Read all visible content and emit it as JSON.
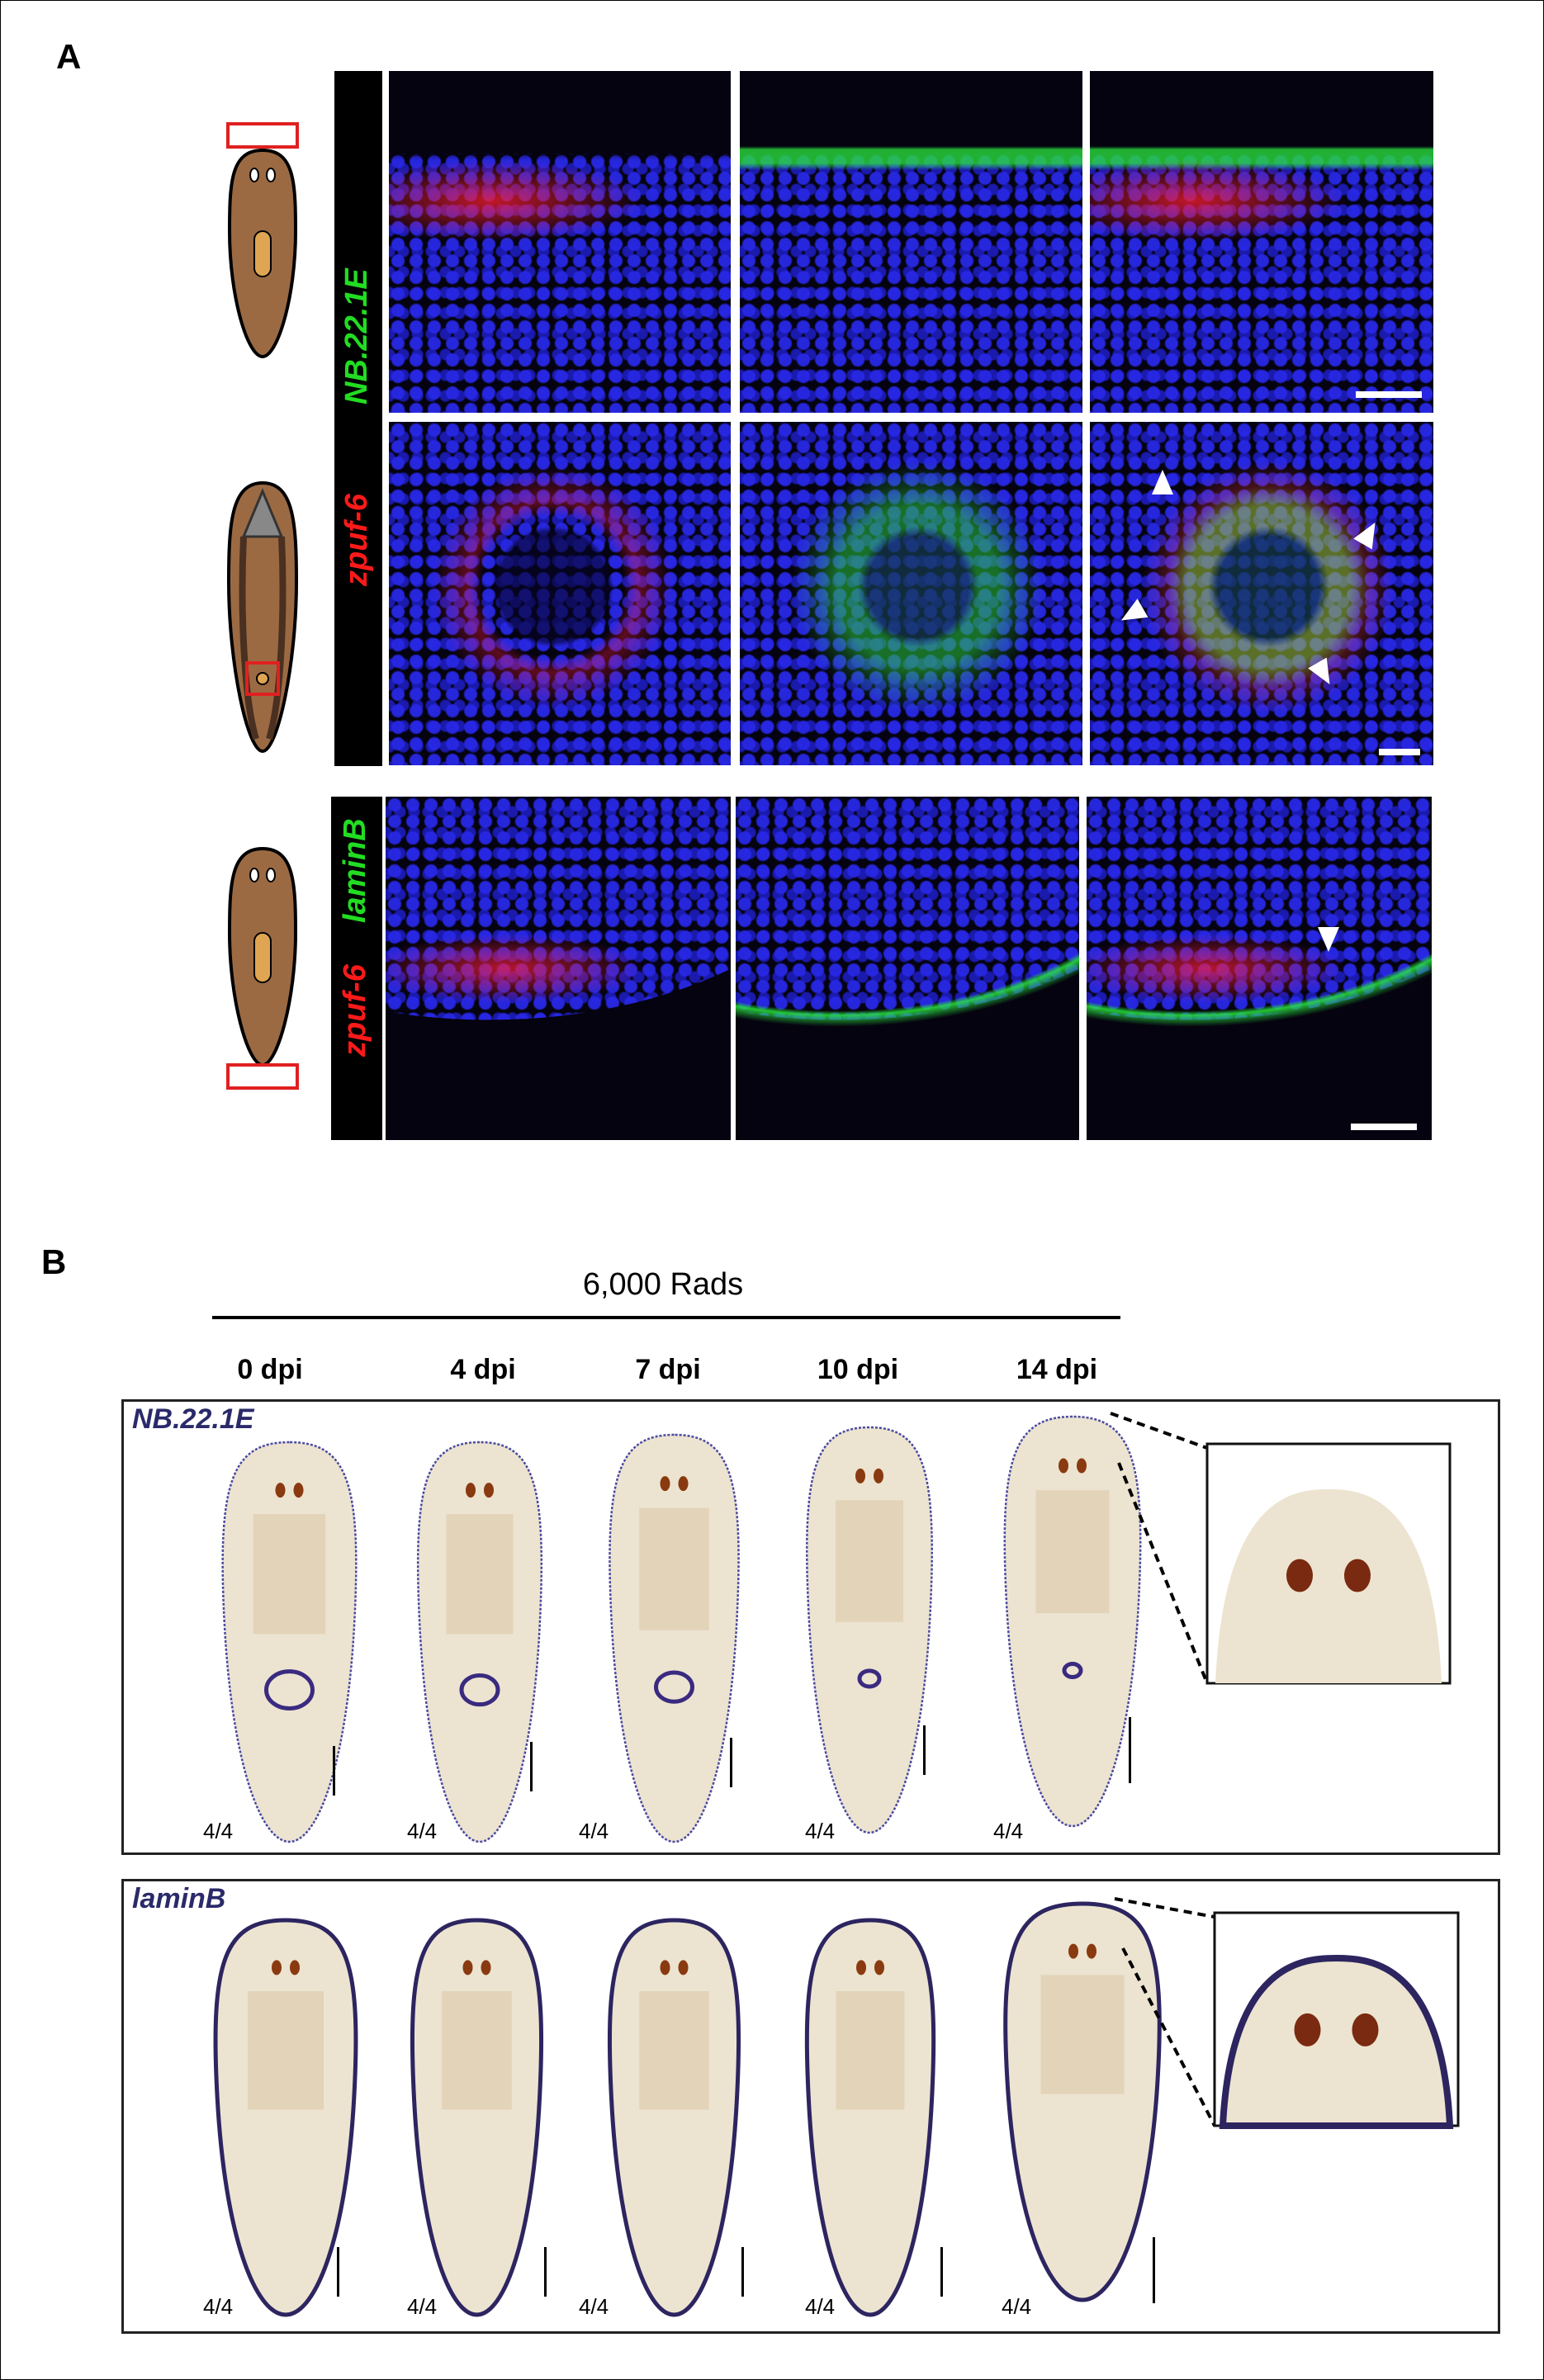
{
  "panel_a": {
    "label": "A",
    "row_group_1": {
      "marker_red": "zpuf-6",
      "marker_green": "NB.22.1E"
    },
    "row_group_2": {
      "marker_red": "zpuf-6",
      "marker_green": "laminB"
    }
  },
  "panel_b": {
    "label": "B",
    "treatment": "6,000 Rads",
    "timepoints": [
      "0 dpi",
      "4 dpi",
      "7 dpi",
      "10 dpi",
      "14 dpi"
    ],
    "rows": [
      {
        "gene": "NB.22.1E",
        "counts": [
          "4/4",
          "4/4",
          "4/4",
          "4/4",
          "4/4"
        ]
      },
      {
        "gene": "laminB",
        "counts": [
          "4/4",
          "4/4",
          "4/4",
          "4/4",
          "4/4"
        ]
      }
    ]
  },
  "colors": {
    "red_channel": "#ff1a1a",
    "green_channel": "#22dd22",
    "nuclei": "#2828e6",
    "worm_cartoon": "#9b6a43",
    "probe_label": "#2a2a6a"
  }
}
